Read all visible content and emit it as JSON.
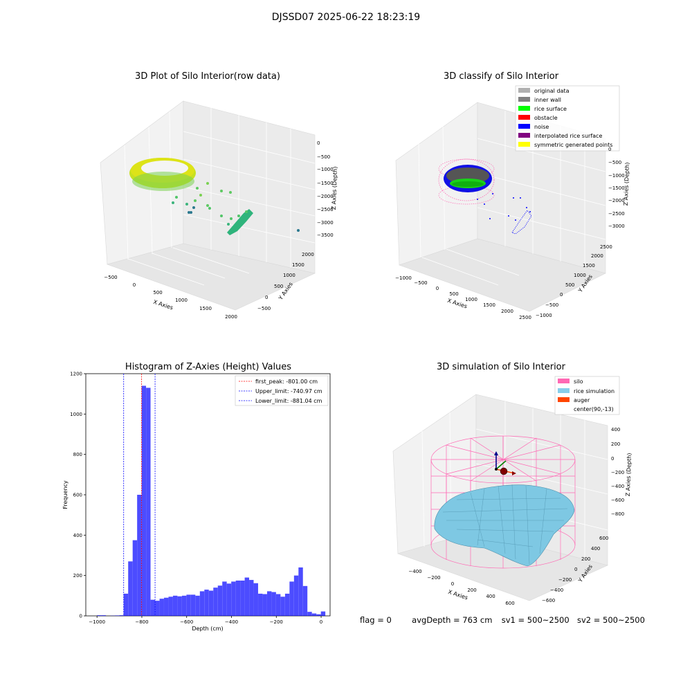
{
  "suptitle": "DJSSD07 2025-06-22 18:23:19",
  "footer": {
    "flag": "flag = 0",
    "avg": "avgDepth = 763 cm",
    "sv1": "sv1 = 500~2500",
    "sv2": "sv2 = 500~2500"
  },
  "colors": {
    "hist_bar": "#0000ff",
    "first_peak": "#ff0000",
    "limits": "#0000ff",
    "silo": "#ff69b4",
    "rice": "#87ceeb",
    "auger": "#ff4500"
  },
  "chart_data": [
    {
      "type": "scatter",
      "title": "3D Plot of Silo Interior(row data)",
      "xlabel": "X Axies",
      "ylabel": "Y Axies",
      "zlabel": "Z Axies (Depth)",
      "x_ticks": [
        "−500",
        "0",
        "500",
        "1000",
        "1500",
        "2000"
      ],
      "y_ticks": [
        "−500",
        "0",
        "500",
        "1000",
        "1500",
        "2000"
      ],
      "z_ticks": [
        "0",
        "−500",
        "−1000",
        "−1500",
        "−2000",
        "−2500",
        "−3000",
        "−3500"
      ],
      "colormap": "viridis"
    },
    {
      "type": "scatter",
      "title": "3D classify of Silo Interior",
      "xlabel": "X Axies",
      "ylabel": "Y Axies",
      "zlabel": "Z Axies (Depth)",
      "x_ticks": [
        "−1000",
        "−500",
        "0",
        "500",
        "1000",
        "1500",
        "2000",
        "2500"
      ],
      "y_ticks": [
        "−1000",
        "−500",
        "0",
        "500",
        "1000",
        "1500",
        "2000",
        "2500"
      ],
      "z_ticks": [
        "0",
        "−500",
        "−1000",
        "−1500",
        "−2000",
        "−2500",
        "−3000"
      ],
      "legend": [
        {
          "label": "original data",
          "color": "#b0b0b0"
        },
        {
          "label": "inner wall",
          "color": "#808080"
        },
        {
          "label": "rice surface",
          "color": "#00ff00"
        },
        {
          "label": "obstacle",
          "color": "#ff0000"
        },
        {
          "label": "noise",
          "color": "#0000ff"
        },
        {
          "label": "interpolated rice surface",
          "color": "#800080"
        },
        {
          "label": "symmetric generated points",
          "color": "#ffff00"
        }
      ]
    },
    {
      "type": "bar",
      "title": "Histogram of Z-Axies (Height) Values",
      "xlabel": "Depth (cm)",
      "ylabel": "Frequency",
      "xlim": [
        -1050,
        40
      ],
      "ylim": [
        0,
        1200
      ],
      "x_ticks": [
        -1000,
        -800,
        -600,
        -400,
        -200,
        0
      ],
      "y_ticks": [
        0,
        200,
        400,
        600,
        800,
        1000,
        1200
      ],
      "bin_width": 19.8,
      "bins": [
        {
          "x": -1000,
          "v": 3
        },
        {
          "x": -980,
          "v": 3
        },
        {
          "x": -940,
          "v": 1
        },
        {
          "x": -920,
          "v": 2
        },
        {
          "x": -900,
          "v": 3
        },
        {
          "x": -881,
          "v": 110
        },
        {
          "x": -861,
          "v": 270
        },
        {
          "x": -841,
          "v": 375
        },
        {
          "x": -821,
          "v": 600
        },
        {
          "x": -801,
          "v": 1140
        },
        {
          "x": -781,
          "v": 1130
        },
        {
          "x": -761,
          "v": 80
        },
        {
          "x": -741,
          "v": 75
        },
        {
          "x": -721,
          "v": 85
        },
        {
          "x": -701,
          "v": 90
        },
        {
          "x": -681,
          "v": 95
        },
        {
          "x": -661,
          "v": 100
        },
        {
          "x": -641,
          "v": 97
        },
        {
          "x": -621,
          "v": 100
        },
        {
          "x": -601,
          "v": 105
        },
        {
          "x": -581,
          "v": 105
        },
        {
          "x": -561,
          "v": 100
        },
        {
          "x": -541,
          "v": 122
        },
        {
          "x": -521,
          "v": 130
        },
        {
          "x": -501,
          "v": 125
        },
        {
          "x": -481,
          "v": 140
        },
        {
          "x": -461,
          "v": 150
        },
        {
          "x": -441,
          "v": 170
        },
        {
          "x": -421,
          "v": 160
        },
        {
          "x": -401,
          "v": 170
        },
        {
          "x": -381,
          "v": 175
        },
        {
          "x": -361,
          "v": 175
        },
        {
          "x": -341,
          "v": 190
        },
        {
          "x": -321,
          "v": 178
        },
        {
          "x": -301,
          "v": 162
        },
        {
          "x": -281,
          "v": 110
        },
        {
          "x": -261,
          "v": 108
        },
        {
          "x": -241,
          "v": 122
        },
        {
          "x": -221,
          "v": 118
        },
        {
          "x": -201,
          "v": 108
        },
        {
          "x": -181,
          "v": 95
        },
        {
          "x": -161,
          "v": 110
        },
        {
          "x": -141,
          "v": 170
        },
        {
          "x": -121,
          "v": 200
        },
        {
          "x": -101,
          "v": 240
        },
        {
          "x": -81,
          "v": 148
        },
        {
          "x": -61,
          "v": 20
        },
        {
          "x": -41,
          "v": 12
        },
        {
          "x": -21,
          "v": 8
        },
        {
          "x": -1,
          "v": 22
        }
      ],
      "vlines": [
        {
          "label": "first_peak: -801.00 cm",
          "x": -801.0,
          "color": "#ff0000"
        },
        {
          "label": "Upper_limit: -740.97 cm",
          "x": -740.97,
          "color": "#0000ff"
        },
        {
          "label": "Lower_limit: -881.04 cm",
          "x": -881.04,
          "color": "#0000ff"
        }
      ]
    },
    {
      "type": "surface",
      "title": "3D simulation of Silo Interior",
      "xlabel": "X Axies",
      "ylabel": "Y Axies",
      "zlabel": "Z Axies (Depth)",
      "x_ticks": [
        "−400",
        "−200",
        "0",
        "200",
        "400",
        "600"
      ],
      "y_ticks": [
        "−600",
        "−400",
        "−200",
        "0",
        "200",
        "400",
        "600"
      ],
      "z_ticks": [
        "400",
        "200",
        "0",
        "−200",
        "−400",
        "−600",
        "−800"
      ],
      "legend": [
        {
          "label": "silo",
          "color": "#ff69b4"
        },
        {
          "label": "rice simulation",
          "color": "#87ceeb"
        },
        {
          "label": "auger",
          "color": "#ff4500"
        },
        {
          "label": "center(90,-13)",
          "color": ""
        }
      ]
    }
  ]
}
